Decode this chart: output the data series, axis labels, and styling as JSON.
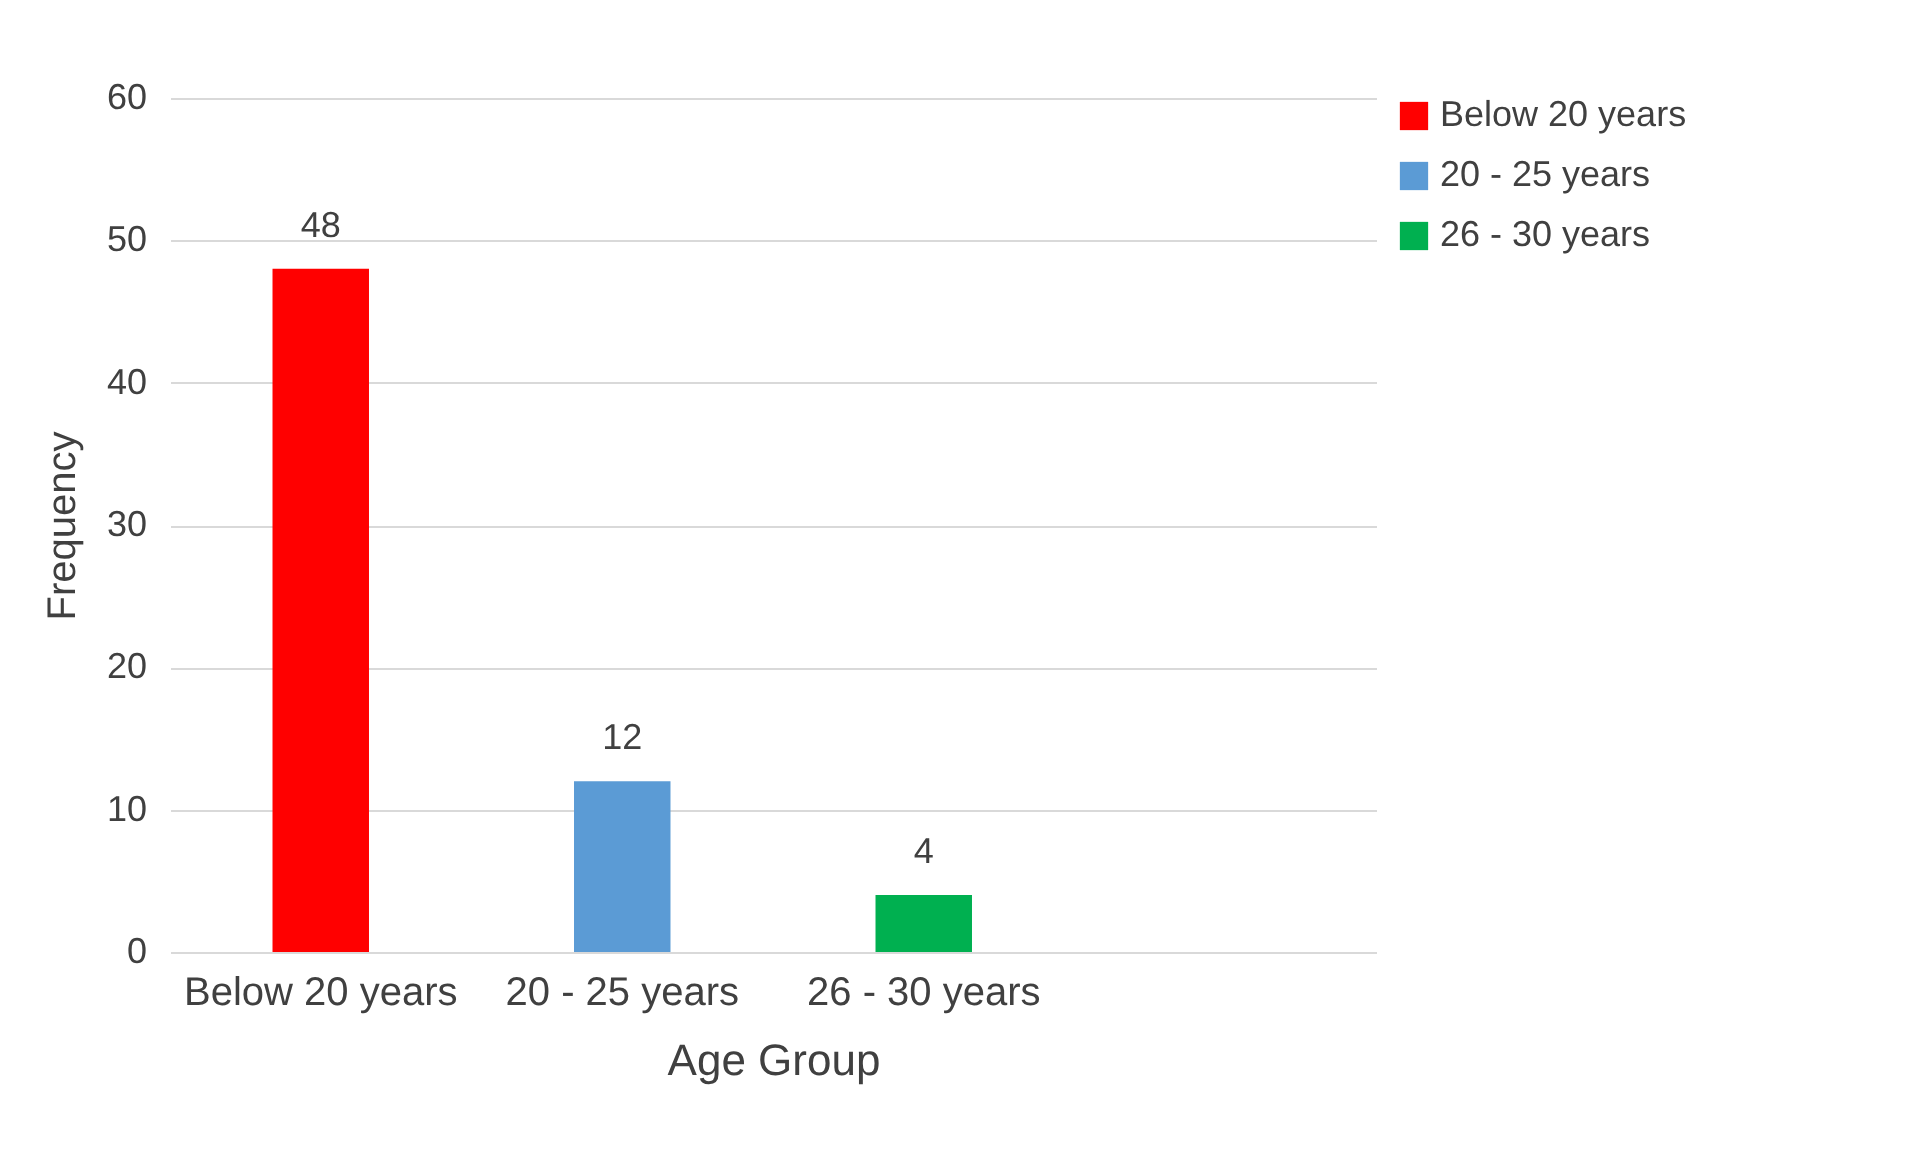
{
  "chart_data": {
    "type": "bar",
    "xlabel": "Age Group",
    "ylabel": "Frequency",
    "categories": [
      "Below 20 years",
      "20 - 25 years",
      "26 - 30 years",
      null
    ],
    "series": [
      {
        "name": "Below 20 years",
        "color": "#ff0000",
        "values": [
          48,
          null,
          null,
          null
        ]
      },
      {
        "name": "20 - 25 years",
        "color": "#5b9bd5",
        "values": [
          null,
          12,
          null,
          null
        ]
      },
      {
        "name": "26 - 30 years",
        "color": "#00b050",
        "values": [
          null,
          null,
          4,
          null
        ]
      }
    ],
    "ylim": [
      0,
      60
    ],
    "yticks": [
      0,
      10,
      20,
      30,
      40,
      50,
      60
    ],
    "grid": "y",
    "legend": "right",
    "data_labels": true
  }
}
